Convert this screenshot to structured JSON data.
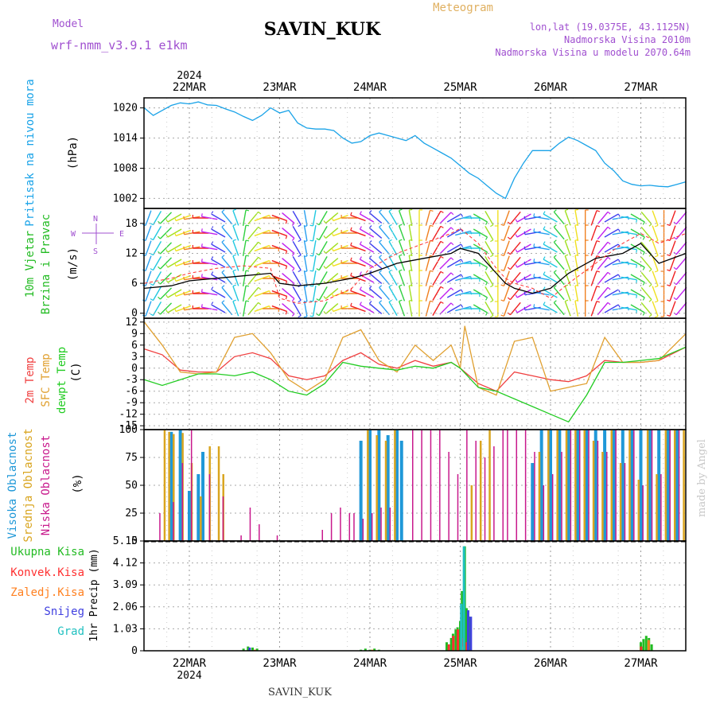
{
  "header": {
    "model_label": "Model",
    "model_name": "wrf-nmm_v3.9.1 e1km",
    "station": "SAVIN_KUK",
    "product": "Meteogram",
    "lonlat": "lon,lat (19.0375E, 43.1125N)",
    "elevation": "Nadmorska Visina 2010m",
    "model_elevation": "Nadmorska Visina u modelu 2070.64m",
    "footer_station": "SAVIN_KUK",
    "credit": "made by Angel"
  },
  "time_axis": {
    "year": "2024",
    "dates": [
      "22MAR",
      "23MAR",
      "24MAR",
      "25MAR",
      "26MAR",
      "27MAR"
    ]
  },
  "colors": {
    "pressure": "#1aa3e8",
    "wind_speed": "#000000",
    "gust": "#ff3030",
    "t2m": "#f04040",
    "sfc": "#e0a030",
    "dewpoint": "#22cc22",
    "cloud_high": "#1f98d8",
    "cloud_mid": "#d9a520",
    "cloud_low": "#c8198c",
    "precip_total": "#22bb22",
    "precip_conv": "#ff3030",
    "precip_frz": "#ff8020",
    "precip_snow": "#4040e0",
    "precip_grad": "#20c0c0"
  },
  "chart_data": [
    {
      "type": "line",
      "panel": "pressure",
      "ylabel": [
        "Pritisak na nivou mora",
        "(hPa)"
      ],
      "yticks": [
        "1020",
        "1014",
        "1008",
        "1002"
      ],
      "ylim": [
        1000,
        1022
      ],
      "x_unit": "days since 22MAR 00UTC",
      "series": [
        {
          "name": "Pritisak na nivou mora",
          "x": [
            -0.5,
            -0.4,
            -0.3,
            -0.2,
            -0.1,
            0,
            0.1,
            0.2,
            0.3,
            0.4,
            0.5,
            0.6,
            0.7,
            0.8,
            0.9,
            1.0,
            1.1,
            1.2,
            1.3,
            1.4,
            1.5,
            1.6,
            1.7,
            1.8,
            1.9,
            2.0,
            2.1,
            2.2,
            2.3,
            2.4,
            2.5,
            2.6,
            2.7,
            2.8,
            2.9,
            3.0,
            3.1,
            3.2,
            3.3,
            3.4,
            3.5,
            3.6,
            3.7,
            3.8,
            3.9,
            4.0,
            4.1,
            4.2,
            4.3,
            4.4,
            4.5,
            4.6,
            4.7,
            4.8,
            4.9,
            5.0,
            5.1,
            5.2,
            5.3,
            5.4,
            5.5
          ],
          "values": [
            1020,
            1018.5,
            1019.5,
            1020.5,
            1021,
            1020.8,
            1021.2,
            1020.6,
            1020.5,
            1019.8,
            1019.2,
            1018.3,
            1017.5,
            1018.5,
            1020,
            1019,
            1019.5,
            1017,
            1016,
            1015.8,
            1015.8,
            1015.5,
            1014,
            1013,
            1013.3,
            1014.5,
            1015,
            1014.5,
            1014,
            1013.5,
            1014.5,
            1013,
            1012,
            1011,
            1010,
            1008.5,
            1007,
            1006,
            1004.5,
            1003,
            1002,
            1006,
            1009,
            1011.5,
            1011.5,
            1011.5,
            1013,
            1014.2,
            1013.5,
            1012.5,
            1011.5,
            1009,
            1007.5,
            1005.5,
            1004.8,
            1004.5,
            1004.6,
            1004.4,
            1004.3,
            1004.8,
            1005.3
          ]
        }
      ]
    },
    {
      "type": "line",
      "panel": "wind",
      "ylabel": [
        "10m Vjetar",
        "Brzina i Pravac",
        "(m/s)"
      ],
      "yticks": [
        "18",
        "12",
        "6",
        "0"
      ],
      "ylim": [
        -1,
        21
      ],
      "compass": {
        "north": "N",
        "east": "E",
        "south": "S",
        "west": "W"
      },
      "x_unit": "days since 22MAR 00UTC",
      "series": [
        {
          "name": "wind speed",
          "x": [
            -0.5,
            -0.2,
            0,
            0.3,
            0.6,
            0.9,
            1.0,
            1.2,
            1.5,
            1.8,
            2.0,
            2.3,
            2.6,
            2.9,
            3.0,
            3.2,
            3.4,
            3.5,
            3.6,
            3.8,
            4.0,
            4.2,
            4.5,
            4.8,
            5.0,
            5.2,
            5.5
          ],
          "values": [
            5,
            5.5,
            6.5,
            7,
            7.5,
            8,
            6,
            5.5,
            6,
            7,
            8,
            10,
            11,
            12,
            13,
            12,
            8,
            6,
            5,
            4,
            5,
            8,
            11,
            12,
            14,
            10,
            12
          ]
        },
        {
          "name": "gust",
          "x": [
            -0.5,
            -0.2,
            0,
            0.3,
            0.6,
            0.9,
            1.0,
            1.2,
            1.5,
            1.8,
            2.0,
            2.3,
            2.6,
            2.9,
            3.0,
            3.2,
            3.4,
            3.5,
            3.6,
            3.8,
            4.0,
            4.2,
            4.5,
            4.8,
            5.0,
            5.2,
            5.5
          ],
          "values": [
            6,
            7,
            8,
            9,
            9.5,
            9,
            3,
            2,
            2.5,
            5,
            9,
            12,
            14,
            16,
            17,
            14,
            9,
            7,
            6,
            5,
            3,
            6,
            10,
            14,
            16,
            14,
            16
          ]
        }
      ],
      "wind_direction_deg": [
        200,
        210,
        225,
        240,
        250,
        260,
        270,
        280,
        300,
        320,
        340,
        10,
        40,
        70,
        90,
        110,
        130,
        150,
        170,
        190,
        210,
        230,
        250,
        270,
        290,
        300,
        310,
        320,
        330,
        340,
        350,
        0,
        15,
        30,
        45,
        60,
        75,
        90,
        120,
        150,
        180,
        200,
        220,
        240,
        260,
        280,
        300,
        320,
        340,
        350,
        0,
        20,
        40,
        60,
        80,
        100,
        120,
        140,
        160,
        180,
        200,
        220
      ]
    },
    {
      "type": "line",
      "panel": "temperature",
      "ylabel": [
        "2m Temp",
        "SFC Temp",
        "dewpt Temp",
        "(C)"
      ],
      "yticks": [
        "12",
        "9",
        "6",
        "3",
        "0",
        "-3",
        "-6",
        "-9",
        "-12",
        "-15"
      ],
      "ylim": [
        -16,
        13
      ],
      "x_unit": "days since 22MAR 00UTC",
      "series": [
        {
          "name": "2m Temp",
          "x": [
            -0.5,
            -0.3,
            -0.1,
            0.1,
            0.3,
            0.5,
            0.7,
            0.9,
            1.1,
            1.3,
            1.5,
            1.7,
            1.9,
            2.1,
            2.3,
            2.5,
            2.7,
            2.9,
            3.0,
            3.2,
            3.4,
            3.6,
            3.8,
            4.0,
            4.2,
            4.4,
            4.6,
            4.8,
            5.0,
            5.2,
            5.5
          ],
          "values": [
            5,
            3.5,
            -0.5,
            -1,
            -1,
            3,
            4,
            2.5,
            -2,
            -3,
            -2,
            2,
            4,
            1,
            0,
            2,
            0.5,
            1.5,
            0,
            -4,
            -6,
            -1,
            -2,
            -3,
            -3.5,
            -2,
            2,
            1.5,
            1.5,
            2,
            5.5
          ]
        },
        {
          "name": "SFC Temp",
          "x": [
            -0.5,
            -0.3,
            -0.1,
            0.1,
            0.3,
            0.5,
            0.7,
            0.9,
            1.1,
            1.3,
            1.5,
            1.7,
            1.9,
            2.1,
            2.3,
            2.5,
            2.7,
            2.9,
            3.0,
            3.05,
            3.2,
            3.4,
            3.6,
            3.8,
            4.0,
            4.2,
            4.4,
            4.6,
            4.8,
            5.0,
            5.2,
            5.5
          ],
          "values": [
            12,
            6,
            -1,
            -1.5,
            -1,
            8,
            9,
            4,
            -3,
            -6,
            -3,
            8,
            10,
            2,
            -1,
            6,
            2,
            6,
            0,
            11,
            -5,
            -7,
            7,
            8,
            -6,
            -5,
            -4,
            8,
            1.5,
            1.5,
            2,
            9
          ]
        },
        {
          "name": "dewpt Temp",
          "x": [
            -0.5,
            -0.3,
            -0.1,
            0.1,
            0.3,
            0.5,
            0.7,
            0.9,
            1.1,
            1.3,
            1.5,
            1.7,
            1.9,
            2.1,
            2.3,
            2.5,
            2.7,
            2.9,
            3.0,
            3.2,
            3.4,
            3.6,
            3.8,
            4.0,
            4.2,
            4.4,
            4.6,
            4.8,
            5.0,
            5.2,
            5.5
          ],
          "values": [
            -3,
            -4.5,
            -3,
            -1.5,
            -1.5,
            -2,
            -1,
            -3,
            -6,
            -7,
            -4,
            1.5,
            0.5,
            0,
            -0.5,
            0.5,
            0,
            1.5,
            0,
            -5,
            -6,
            -8,
            -10,
            -12,
            -14,
            -7,
            1.5,
            1.5,
            2,
            2.5,
            5.5
          ]
        }
      ]
    },
    {
      "type": "bar",
      "panel": "clouds",
      "ylabel": [
        "Visoka Oblacnost",
        "Srednja Oblacnost",
        "Niska Oblacnost",
        "(%)"
      ],
      "yticks": [
        "100",
        "75",
        "50",
        "25",
        "0"
      ],
      "ylim": [
        0,
        100
      ],
      "x_unit": "days since 22MAR 00UTC",
      "series": [
        {
          "name": "Visoka Oblacnost",
          "x": [
            -0.2,
            -0.1,
            0,
            0.1,
            0.15,
            1.9,
            2.0,
            2.1,
            2.2,
            2.3,
            2.35,
            3.8,
            3.9,
            4.0,
            4.1,
            4.2,
            4.3,
            4.4,
            4.5,
            4.6,
            4.7,
            4.8,
            4.9,
            5.0,
            5.1,
            5.2,
            5.3,
            5.4
          ],
          "values": [
            98,
            100,
            45,
            60,
            80,
            90,
            100,
            100,
            95,
            100,
            90,
            70,
            100,
            100,
            100,
            100,
            100,
            100,
            100,
            100,
            100,
            100,
            100,
            100,
            100,
            100,
            100,
            100
          ]
        },
        {
          "name": "Srednja Oblacnost",
          "x": [
            -0.3,
            -0.25,
            -0.2,
            -0.1,
            0,
            0.1,
            0.2,
            0.3,
            0.35,
            1.95,
            2.05,
            2.15,
            2.25,
            3.1,
            3.2,
            3.3,
            3.85,
            3.95,
            4.05,
            4.15,
            4.25,
            4.35,
            4.45,
            4.55,
            4.65,
            4.75,
            4.85,
            4.95,
            5.05,
            5.15,
            5.25,
            5.35,
            5.45
          ],
          "values": [
            100,
            98,
            96,
            97,
            70,
            40,
            85,
            85,
            60,
            100,
            95,
            90,
            100,
            50,
            90,
            100,
            80,
            100,
            100,
            100,
            100,
            100,
            90,
            80,
            100,
            70,
            100,
            55,
            100,
            60,
            100,
            100,
            100
          ]
        },
        {
          "name": "Niska Oblacnost",
          "x": [
            -0.3,
            -0.15,
            -0.05,
            0.05,
            0.25,
            0.4,
            0.6,
            0.7,
            0.8,
            1.0,
            1.5,
            1.6,
            1.7,
            1.8,
            1.85,
            1.95,
            2.05,
            2.15,
            2.25,
            2.5,
            2.6,
            2.7,
            2.8,
            2.9,
            3.0,
            3.1,
            3.2,
            3.3,
            3.4,
            3.5,
            3.55,
            3.65,
            3.75,
            3.85,
            3.95,
            4.05,
            4.15,
            4.25,
            4.35,
            4.45,
            4.55,
            4.65,
            4.75,
            4.85,
            4.95,
            5.05,
            5.15,
            5.25,
            5.35,
            5.45
          ],
          "values": [
            25,
            35,
            70,
            100,
            60,
            40,
            5,
            30,
            15,
            5,
            10,
            25,
            30,
            25,
            25,
            20,
            25,
            30,
            30,
            100,
            100,
            100,
            100,
            80,
            60,
            100,
            90,
            75,
            85,
            100,
            100,
            100,
            100,
            80,
            50,
            60,
            80,
            100,
            100,
            100,
            90,
            80,
            100,
            70,
            100,
            50,
            100,
            60,
            100,
            100
          ]
        }
      ]
    },
    {
      "type": "bar",
      "panel": "precipitation",
      "ylabel": [
        "1hr Precip (mm)"
      ],
      "yticks": [
        "5.15",
        "4.12",
        "3.09",
        "2.06",
        "1.03",
        "0"
      ],
      "ylim": [
        0,
        5.15
      ],
      "legend": [
        "Ukupna Kisa",
        "Konvek.Kisa",
        "Zaledj.Kisa",
        "Snijeg",
        "Grad"
      ],
      "x_unit": "days since 22MAR 00UTC",
      "series": [
        {
          "name": "Ukupna Kisa",
          "x": [
            0.6,
            0.65,
            0.7,
            0.75,
            1.9,
            1.95,
            2.0,
            2.05,
            2.1,
            2.85,
            2.9,
            2.92,
            2.95,
            2.97,
            3.0,
            3.02,
            3.05,
            3.07,
            3.1,
            5.0,
            5.03,
            5.06,
            5.09,
            5.12
          ],
          "values": [
            0.1,
            0.2,
            0.15,
            0.1,
            0.05,
            0.1,
            0.05,
            0.1,
            0.05,
            0.4,
            0.6,
            0.8,
            1.0,
            1.1,
            1.4,
            2.8,
            4.9,
            2.0,
            1.6,
            0.4,
            0.55,
            0.7,
            0.6,
            0.3
          ]
        },
        {
          "name": "Konvek.Kisa",
          "x": [
            2.9,
            2.95,
            3.0,
            3.05,
            3.1,
            5.03
          ],
          "values": [
            0.3,
            0.7,
            1.0,
            0.6,
            0.4,
            0.2
          ]
        },
        {
          "name": "Zaledj.Kisa",
          "x": [
            0.7,
            2.0,
            3.0,
            5.06
          ],
          "values": [
            0.05,
            0.05,
            0.2,
            0.5
          ]
        },
        {
          "name": "Snijeg",
          "x": [
            0.65,
            3.07,
            3.1
          ],
          "values": [
            0.15,
            1.9,
            1.6
          ]
        },
        {
          "name": "Grad",
          "x": [
            3.02,
            3.05
          ],
          "values": [
            2.2,
            4.9
          ]
        }
      ]
    }
  ]
}
